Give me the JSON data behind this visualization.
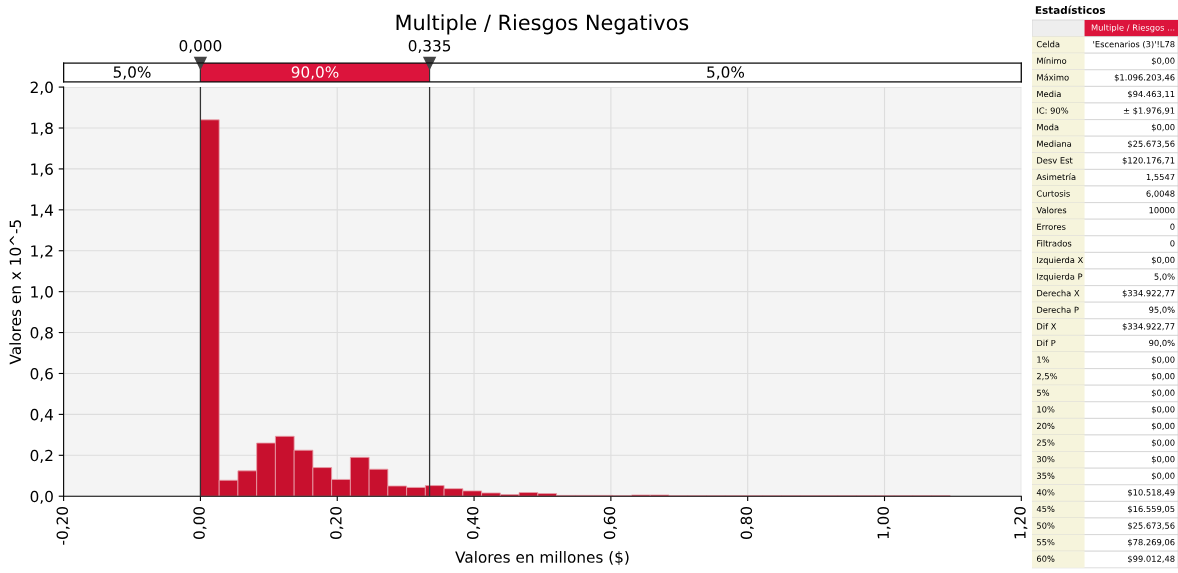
{
  "chart_data": [
    {
      "type": "histogram",
      "title": "Multiple / Riesgos Negativos",
      "xlabel": "Valores en millones ($)",
      "ylabel": "Valores en x 10^-5",
      "color": "#c8102e",
      "bins": [
        0,
        0.0274,
        0.0548,
        0.0822,
        0.1096,
        0.137,
        0.1644,
        0.1918,
        0.2192,
        0.2466,
        0.274,
        0.3014,
        0.3288,
        0.3562,
        0.3836,
        0.411,
        0.4384,
        0.4658,
        0.4932,
        0.5206,
        0.548,
        0.5754,
        0.6028,
        0.6302,
        0.6576,
        0.685,
        0.7124,
        0.7398,
        0.7672,
        0.7946,
        0.822,
        0.8494,
        0.8768,
        0.9042,
        0.9316,
        0.959,
        0.9864,
        1.0138,
        1.0412,
        1.0686,
        1.096
      ],
      "values": [
        1.84,
        0.078,
        0.124,
        0.26,
        0.293,
        0.225,
        0.14,
        0.082,
        0.19,
        0.132,
        0.05,
        0.043,
        0.052,
        0.037,
        0.026,
        0.016,
        0.008,
        0.018,
        0.013,
        0.004,
        0.004,
        0.004,
        0.002,
        0.006,
        0.006,
        0.002,
        0.002,
        0.002,
        0.002,
        0.002,
        0.002,
        0.002,
        0.002,
        0.002,
        0.002,
        0.002,
        0.002,
        0.002,
        0.002,
        0.002
      ],
      "xlim": [
        -0.2,
        1.2
      ],
      "ylim": [
        0,
        2.0
      ],
      "xticks": [
        {
          "value": -0.2,
          "label": "-0,20"
        },
        {
          "value": 0,
          "label": "0,00"
        },
        {
          "value": 0.2,
          "label": "0,20"
        },
        {
          "value": 0.4,
          "label": "0,40"
        },
        {
          "value": 0.6,
          "label": "0,60"
        },
        {
          "value": 0.8,
          "label": "0,80"
        },
        {
          "value": 1.0,
          "label": "1,00"
        },
        {
          "value": 1.2,
          "label": "1,20"
        }
      ],
      "yticks": [
        {
          "value": 0,
          "label": "0,0"
        },
        {
          "value": 0.2,
          "label": "0,2"
        },
        {
          "value": 0.4,
          "label": "0,4"
        },
        {
          "value": 0.6,
          "label": "0,6"
        },
        {
          "value": 0.8,
          "label": "0,8"
        },
        {
          "value": 1.0,
          "label": "1,0"
        },
        {
          "value": 1.2,
          "label": "1,2"
        },
        {
          "value": 1.4,
          "label": "1,4"
        },
        {
          "value": 1.6,
          "label": "1,6"
        },
        {
          "value": 1.8,
          "label": "1,8"
        },
        {
          "value": 2.0,
          "label": "2,0"
        }
      ],
      "grid": true,
      "ref_lines": [
        {
          "axis": "x",
          "value": 0,
          "label": "0,000",
          "color": "#333333"
        },
        {
          "axis": "x",
          "value": 0.335,
          "label": "0,335",
          "color": "#333333"
        }
      ],
      "annotations": [
        "5,0%",
        "90,0%",
        "5,0%"
      ]
    },
    {
      "type": "other",
      "title": "Estadísticos",
      "categories": [
        "Multiple / Riesgos ..."
      ],
      "y_categories": [
        "Celda",
        "Mínimo",
        "Máximo",
        "Media",
        "IC: 90%",
        "Moda",
        "Mediana",
        "Desv Est",
        "Asimetría",
        "Curtosis",
        "Valores",
        "Errores",
        "Filtrados",
        "Izquierda X",
        "Izquierda P",
        "Derecha X",
        "Derecha P",
        "Dif X",
        "Dif P",
        "1%",
        "2,5%",
        "5%",
        "10%",
        "20%",
        "25%",
        "30%",
        "35%",
        "40%",
        "45%",
        "50%",
        "55%",
        "60%"
      ],
      "cell_labels": [
        [
          "'Escenarios (3)'!L78"
        ],
        [
          "$0,00"
        ],
        [
          "$1.096.203,46"
        ],
        [
          "$94.463,11"
        ],
        [
          "± $1.976,91"
        ],
        [
          "$0,00"
        ],
        [
          "$25.673,56"
        ],
        [
          "$120.176,71"
        ],
        [
          "1,5547"
        ],
        [
          "6,0048"
        ],
        [
          "10000"
        ],
        [
          "0"
        ],
        [
          "0"
        ],
        [
          "$0,00"
        ],
        [
          "5,0%"
        ],
        [
          "$334.922,77"
        ],
        [
          "95,0%"
        ],
        [
          "$334.922,77"
        ],
        [
          "90,0%"
        ],
        [
          "$0,00"
        ],
        [
          "$0,00"
        ],
        [
          "$0,00"
        ],
        [
          "$0,00"
        ],
        [
          "$0,00"
        ],
        [
          "$0,00"
        ],
        [
          "$0,00"
        ],
        [
          "$0,00"
        ],
        [
          "$10.518,49"
        ],
        [
          "$16.559,05"
        ],
        [
          "$25.673,56"
        ],
        [
          "$78.269,06"
        ],
        [
          "$99.012,48"
        ]
      ]
    }
  ]
}
